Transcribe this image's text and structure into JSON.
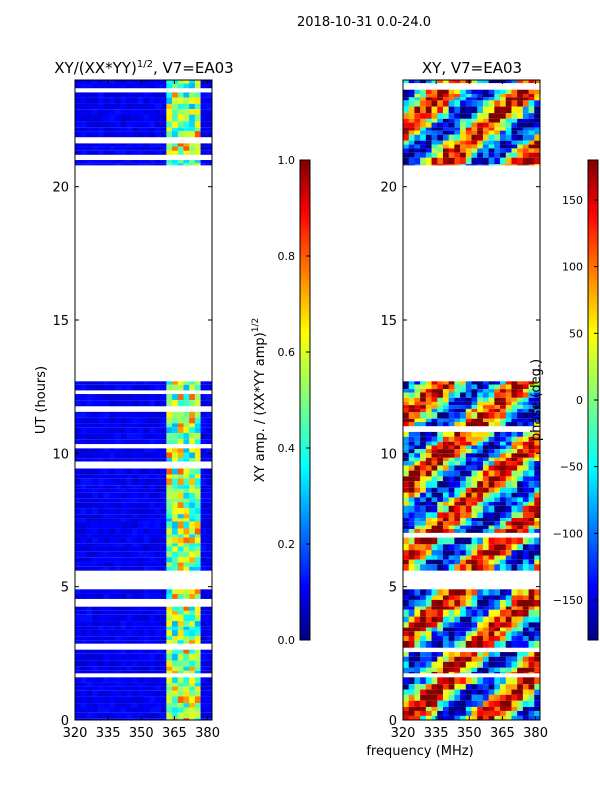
{
  "suptitle": "2018-10-31 0.0-24.0",
  "shared_xlabel": "frequency (MHz)",
  "chart_data": [
    {
      "type": "heatmap",
      "title": "XY/(XX*YY)",
      "title_superscript": "1/2",
      "title_suffix": ", V7=EA03",
      "ylabel": "UT (hours)",
      "xlim": [
        320,
        382
      ],
      "ylim": [
        0,
        24
      ],
      "xticks": [
        320,
        335,
        350,
        365,
        380
      ],
      "yticks": [
        0,
        5,
        10,
        15,
        20
      ],
      "data_bands_ut": [
        [
          0.0,
          1.6
        ],
        [
          1.75,
          4.9
        ],
        [
          5.6,
          12.7
        ],
        [
          20.8,
          24.0
        ]
      ],
      "colorbar": {
        "label": "XY amp. / (XX*YY amp)",
        "label_superscript": "1/2",
        "range": [
          0.0,
          1.0
        ],
        "ticks": [
          "0.0",
          "0.2",
          "0.4",
          "0.6",
          "0.8",
          "1.0"
        ],
        "colormap": "jet"
      }
    },
    {
      "type": "heatmap",
      "title": "XY, V7=EA03",
      "xlim": [
        320,
        382
      ],
      "ylim": [
        0,
        24
      ],
      "xticks": [
        320,
        335,
        350,
        365,
        380
      ],
      "yticks": [
        0,
        5,
        10,
        15,
        20
      ],
      "data_bands_ut": [
        [
          0.0,
          1.6
        ],
        [
          1.75,
          4.9
        ],
        [
          5.6,
          12.7
        ],
        [
          20.8,
          24.0
        ]
      ],
      "colorbar": {
        "label": "phase (deg.)",
        "range": [
          -180,
          180
        ],
        "ticks": [
          "−150",
          "−100",
          "−50",
          "0",
          "50",
          "100",
          "150"
        ],
        "colormap": "jet"
      }
    }
  ]
}
